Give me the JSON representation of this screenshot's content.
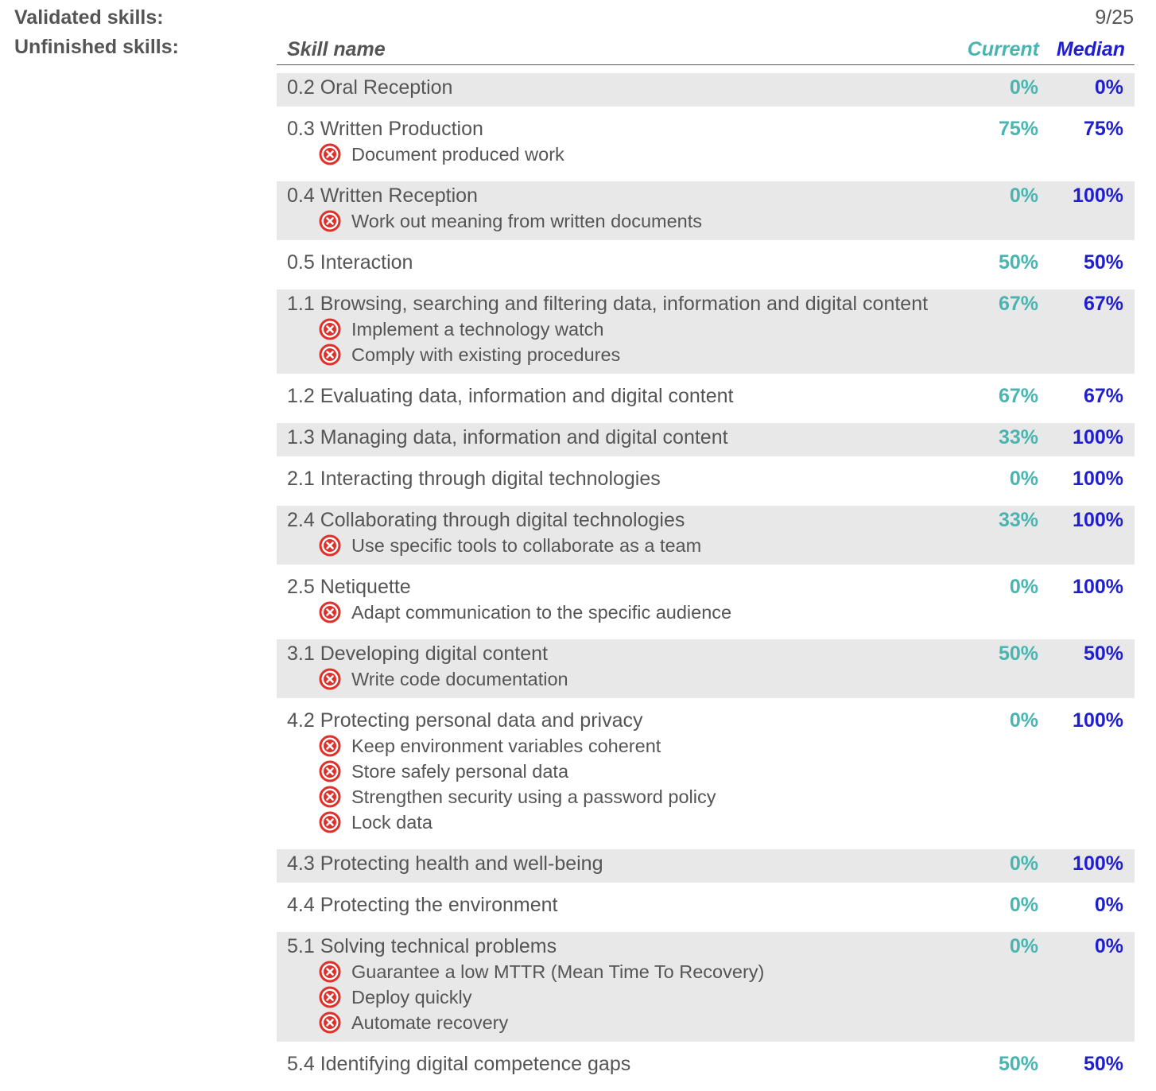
{
  "summary": {
    "validated_label": "Validated skills:",
    "validated_count": "9/25",
    "unfinished_label": "Unfinished skills:"
  },
  "table": {
    "headers": {
      "name": "Skill name",
      "current": "Current",
      "median": "Median"
    },
    "colors": {
      "current": "#4ab5b0",
      "median": "#1f1fd0",
      "shade": "#e8e8e8",
      "fail_icon": "#e0302a"
    },
    "rows": [
      {
        "title": "0.2 Oral Reception",
        "current": "0%",
        "median": "0%",
        "sub": []
      },
      {
        "title": "0.3 Written Production",
        "current": "75%",
        "median": "75%",
        "sub": [
          "Document produced work"
        ]
      },
      {
        "title": "0.4 Written Reception",
        "current": "0%",
        "median": "100%",
        "sub": [
          "Work out meaning from written documents"
        ]
      },
      {
        "title": "0.5 Interaction",
        "current": "50%",
        "median": "50%",
        "sub": []
      },
      {
        "title": "1.1 Browsing, searching and filtering data, information and digital content",
        "current": "67%",
        "median": "67%",
        "sub": [
          "Implement a technology watch",
          "Comply with existing procedures"
        ]
      },
      {
        "title": "1.2 Evaluating data, information and digital content",
        "current": "67%",
        "median": "67%",
        "sub": []
      },
      {
        "title": "1.3 Managing data, information and digital content",
        "current": "33%",
        "median": "100%",
        "sub": []
      },
      {
        "title": "2.1 Interacting through digital technologies",
        "current": "0%",
        "median": "100%",
        "sub": []
      },
      {
        "title": "2.4 Collaborating through digital technologies",
        "current": "33%",
        "median": "100%",
        "sub": [
          "Use specific tools to collaborate as a team"
        ]
      },
      {
        "title": "2.5 Netiquette",
        "current": "0%",
        "median": "100%",
        "sub": [
          "Adapt communication to the specific audience"
        ]
      },
      {
        "title": "3.1 Developing digital content",
        "current": "50%",
        "median": "50%",
        "sub": [
          "Write code documentation"
        ]
      },
      {
        "title": "4.2 Protecting personal data and privacy",
        "current": "0%",
        "median": "100%",
        "sub": [
          "Keep environment variables coherent",
          "Store safely personal data",
          "Strengthen security using a password policy",
          "Lock data"
        ]
      },
      {
        "title": "4.3 Protecting health and well-being",
        "current": "0%",
        "median": "100%",
        "sub": []
      },
      {
        "title": "4.4 Protecting the environment",
        "current": "0%",
        "median": "0%",
        "sub": []
      },
      {
        "title": "5.1 Solving technical problems",
        "current": "0%",
        "median": "0%",
        "sub": [
          "Guarantee a low MTTR (Mean Time To Recovery)",
          "Deploy quickly",
          "Automate recovery"
        ]
      },
      {
        "title": "5.4 Identifying digital competence gaps",
        "current": "50%",
        "median": "50%",
        "sub": []
      }
    ]
  }
}
